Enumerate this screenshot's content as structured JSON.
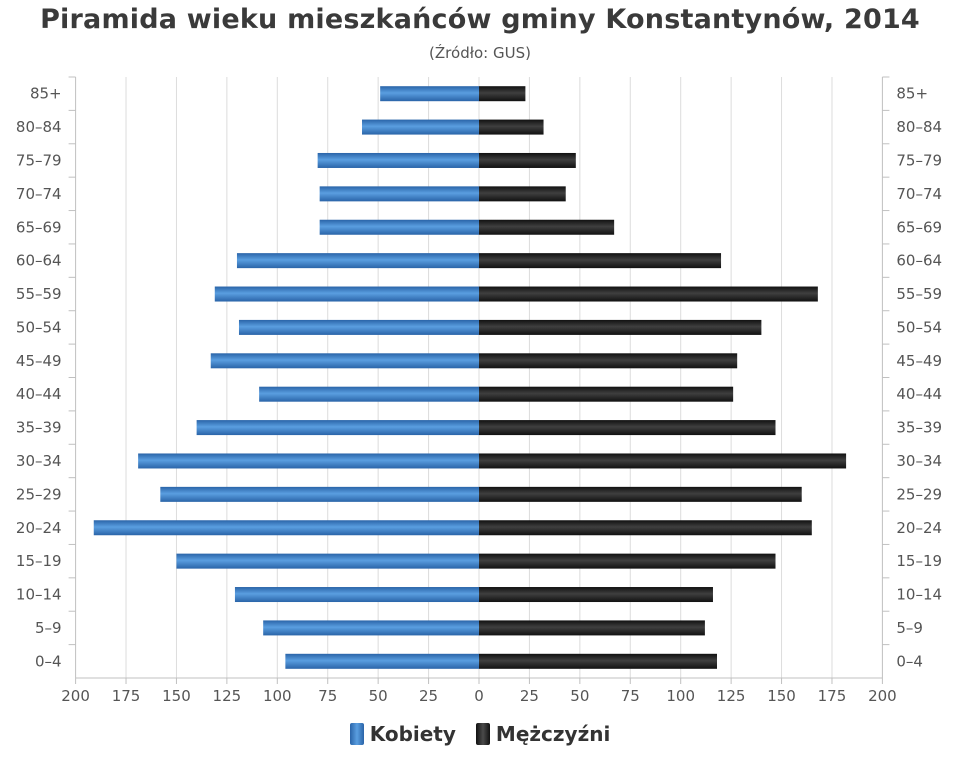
{
  "title": "Piramida wieku mieszkańców gminy Konstantynów, 2014",
  "subtitle": "(Źródło: GUS)",
  "colors": {
    "female": "#4a8fd4",
    "female_dark": "#2a64a8",
    "male": "#1c1c1c",
    "male_light": "#4a4a4a",
    "grid": "#dcdcdc",
    "axis": "#c0c0c0",
    "text": "#555555"
  },
  "chart_data": {
    "type": "bar",
    "orientation": "horizontal",
    "layout": "population-pyramid",
    "title": "Piramida wieku mieszkańców gminy Konstantynów, 2014",
    "subtitle": "(Źródło: GUS)",
    "categories": [
      "0–4",
      "5–9",
      "10–14",
      "15–19",
      "20–24",
      "25–29",
      "30–34",
      "35–39",
      "40–44",
      "45–49",
      "50–54",
      "55–59",
      "60–64",
      "65–69",
      "70–74",
      "75–79",
      "80–84",
      "85+"
    ],
    "series": [
      {
        "name": "Kobiety",
        "values": [
          96,
          107,
          121,
          150,
          191,
          158,
          169,
          140,
          109,
          133,
          119,
          131,
          120,
          79,
          79,
          80,
          58,
          49
        ]
      },
      {
        "name": "Mężczyźni",
        "values": [
          118,
          112,
          116,
          147,
          165,
          160,
          182,
          147,
          126,
          128,
          140,
          168,
          120,
          67,
          43,
          48,
          32,
          23
        ]
      }
    ],
    "xlim": [
      -200,
      200
    ],
    "x_ticks": [
      -200,
      -175,
      -150,
      -125,
      -100,
      -75,
      -50,
      -25,
      0,
      25,
      50,
      75,
      100,
      125,
      150,
      175,
      200
    ],
    "x_tick_labels": [
      "200",
      "175",
      "150",
      "125",
      "100",
      "75",
      "50",
      "25",
      "0",
      "25",
      "50",
      "75",
      "100",
      "125",
      "150",
      "175",
      "200"
    ],
    "grid": true,
    "legend": "bottom"
  }
}
